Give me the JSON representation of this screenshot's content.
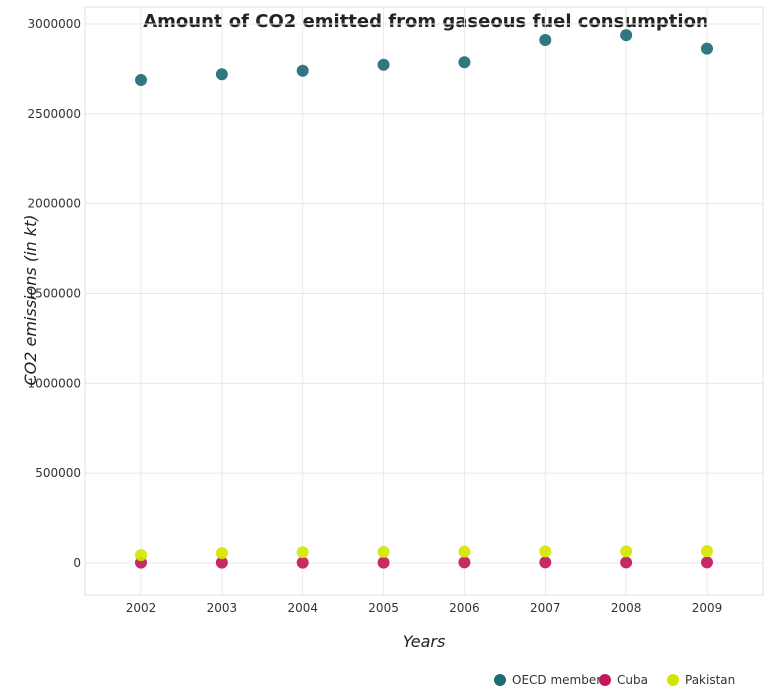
{
  "chart_data": {
    "type": "scatter",
    "title": "Amount of CO2 emitted from gaseous fuel consumption",
    "xlabel": "Years",
    "ylabel": "CO2 emissions (in kt)",
    "x": [
      "2002",
      "2003",
      "2004",
      "2005",
      "2006",
      "2007",
      "2008",
      "2009"
    ],
    "ylim": [
      0,
      3000000
    ],
    "yticks": [
      0,
      500000,
      1000000,
      1500000,
      2000000,
      2500000,
      3000000
    ],
    "ytick_labels": [
      "0",
      "500000",
      "1000000",
      "1500000",
      "2000000",
      "2500000",
      "3000000"
    ],
    "grid": true,
    "legend_position": "bottom-right",
    "series": [
      {
        "name": "OECD members",
        "color": "#1f6b78",
        "values": [
          2688000,
          2720000,
          2740000,
          2773000,
          2787000,
          2911000,
          2938000,
          2863000
        ]
      },
      {
        "name": "Cuba",
        "color": "#c2185b",
        "values": [
          2000,
          2200,
          2100,
          2300,
          3200,
          3300,
          3100,
          3500
        ]
      },
      {
        "name": "Pakistan",
        "color": "#d4e600",
        "values": [
          44000,
          55000,
          60000,
          62000,
          63000,
          64500,
          65000,
          66000
        ]
      }
    ]
  }
}
